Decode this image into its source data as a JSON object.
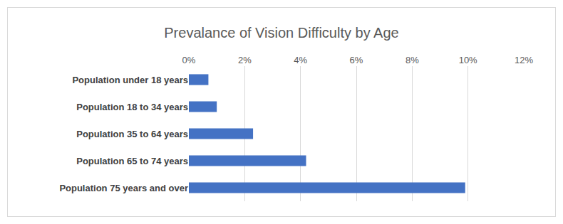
{
  "chart_data": {
    "type": "bar",
    "orientation": "horizontal",
    "title": "Prevalance of Vision Difficulty by Age",
    "categories": [
      "Population under 18 years",
      "Population 18 to 34 years",
      "Population 35 to 64 years",
      "Population 65 to 74 years",
      "Population 75 years and over"
    ],
    "values": [
      0.7,
      1.0,
      2.3,
      4.2,
      9.9
    ],
    "color": "#4472c4",
    "xlim": [
      0,
      12
    ],
    "xticks": [
      {
        "value": 0,
        "label": "0%"
      },
      {
        "value": 2,
        "label": "2%"
      },
      {
        "value": 4,
        "label": "4%"
      },
      {
        "value": 6,
        "label": "6%"
      },
      {
        "value": 8,
        "label": "8%"
      },
      {
        "value": 10,
        "label": "10%"
      },
      {
        "value": 12,
        "label": "12%"
      }
    ],
    "grid": true
  }
}
